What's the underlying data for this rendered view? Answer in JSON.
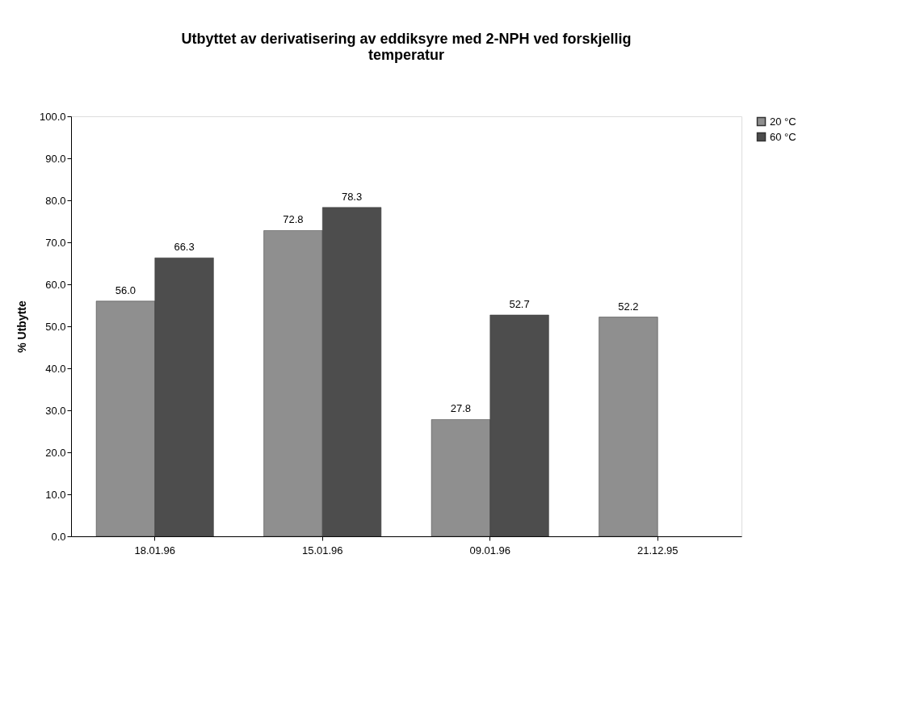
{
  "chart_data": {
    "type": "bar",
    "title": "Utbyttet av derivatisering av eddiksyre med 2-NPH ved forskjellig temperatur",
    "ylabel": "% Utbytte",
    "categories": [
      "18.01.96",
      "15.01.96",
      "09.01.96",
      "21.12.95"
    ],
    "series": [
      {
        "name": "20 °C",
        "color": "#8f8f8f",
        "values": [
          56.0,
          72.8,
          27.8,
          52.2
        ],
        "value_labels": [
          "56.0",
          "72.8",
          "27.8",
          "52.2"
        ]
      },
      {
        "name": "60 °C",
        "color": "#4d4d4d",
        "values": [
          66.3,
          78.3,
          52.7,
          null
        ],
        "value_labels": [
          "66.3",
          "78.3",
          "52.7",
          null
        ]
      }
    ],
    "ylim": [
      0,
      100
    ],
    "yticks": [
      {
        "value": 0,
        "label": "0.0"
      },
      {
        "value": 10,
        "label": "10.0"
      },
      {
        "value": 20,
        "label": "20.0"
      },
      {
        "value": 30,
        "label": "30.0"
      },
      {
        "value": 40,
        "label": "40.0"
      },
      {
        "value": 50,
        "label": "50.0"
      },
      {
        "value": 60,
        "label": "60.0"
      },
      {
        "value": 70,
        "label": "70.0"
      },
      {
        "value": 80,
        "label": "80.0"
      },
      {
        "value": 90,
        "label": "90.0"
      },
      {
        "value": 100,
        "label": "100.0"
      }
    ],
    "grid": false,
    "legend": "right"
  }
}
